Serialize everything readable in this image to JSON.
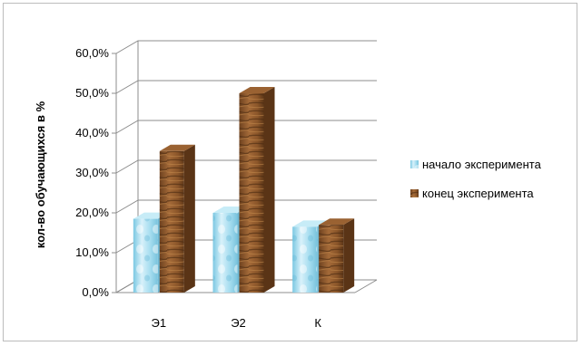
{
  "chart_data": {
    "type": "bar",
    "style": "3d-clustered-column",
    "categories": [
      "Э1",
      "Э2",
      "К"
    ],
    "series": [
      {
        "name": "начало эксперимента",
        "values": [
          18.5,
          20.0,
          16.5
        ],
        "color": "#a9dcee",
        "texture": "water-droplets"
      },
      {
        "name": "конец эксперимента",
        "values": [
          35.5,
          50.0,
          17.0
        ],
        "color": "#8b5a2b",
        "texture": "wood-grain"
      }
    ],
    "ylabel": "кол-во обучающихся в %",
    "xlabel": "",
    "title": "",
    "ylim": [
      0,
      60
    ],
    "yticks": [
      "0,0%",
      "10,0%",
      "20,0%",
      "30,0%",
      "40,0%",
      "50,0%",
      "60,0%"
    ],
    "grid": true,
    "legend": "right"
  }
}
